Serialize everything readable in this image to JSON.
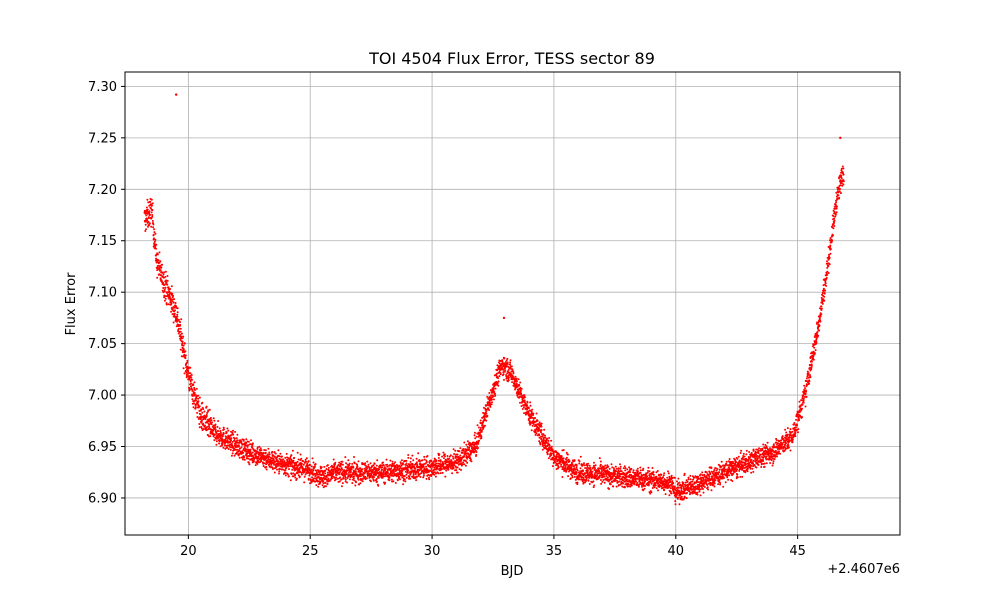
{
  "chart_data": {
    "type": "scatter",
    "title": "TOI 4504 Flux Error, TESS sector 89",
    "xlabel": "BJD",
    "ylabel": "Flux Error",
    "x_offset_label": "+2.4607e6",
    "xlim": [
      17.4,
      49.2
    ],
    "ylim": [
      6.864,
      7.314
    ],
    "xticks": [
      20,
      25,
      30,
      35,
      40,
      45
    ],
    "xtick_labels": [
      "20",
      "25",
      "30",
      "35",
      "40",
      "45"
    ],
    "yticks": [
      6.9,
      6.95,
      7.0,
      7.05,
      7.1,
      7.15,
      7.2,
      7.25,
      7.3
    ],
    "ytick_labels": [
      "6.90",
      "6.95",
      "7.00",
      "7.05",
      "7.10",
      "7.15",
      "7.20",
      "7.25",
      "7.30"
    ],
    "grid": true,
    "marker_color": "#ff0000",
    "series": [
      {
        "name": "",
        "trend_points": [
          [
            18.2,
            7.17
          ],
          [
            18.5,
            7.18
          ],
          [
            18.7,
            7.13
          ],
          [
            19.0,
            7.11
          ],
          [
            19.5,
            7.08
          ],
          [
            20.0,
            7.02
          ],
          [
            20.5,
            6.98
          ],
          [
            21.0,
            6.965
          ],
          [
            22.0,
            6.95
          ],
          [
            23.0,
            6.94
          ],
          [
            24.0,
            6.932
          ],
          [
            25.0,
            6.927
          ],
          [
            25.6,
            6.92
          ],
          [
            26.0,
            6.925
          ],
          [
            28.0,
            6.925
          ],
          [
            30.0,
            6.93
          ],
          [
            31.0,
            6.935
          ],
          [
            31.8,
            6.95
          ],
          [
            32.3,
            6.99
          ],
          [
            32.7,
            7.02
          ],
          [
            32.9,
            7.03
          ],
          [
            33.3,
            7.02
          ],
          [
            33.8,
            6.99
          ],
          [
            34.5,
            6.96
          ],
          [
            35.0,
            6.94
          ],
          [
            36.0,
            6.925
          ],
          [
            38.0,
            6.92
          ],
          [
            39.8,
            6.915
          ],
          [
            40.0,
            6.905
          ],
          [
            41.0,
            6.915
          ],
          [
            42.0,
            6.925
          ],
          [
            43.0,
            6.935
          ],
          [
            44.0,
            6.945
          ],
          [
            44.8,
            6.96
          ],
          [
            45.3,
            7.0
          ],
          [
            45.8,
            7.06
          ],
          [
            46.2,
            7.12
          ],
          [
            46.6,
            7.19
          ],
          [
            46.9,
            7.22
          ]
        ],
        "outliers": [
          [
            19.5,
            7.292
          ],
          [
            32.95,
            7.075
          ],
          [
            46.75,
            7.25
          ]
        ]
      }
    ]
  }
}
